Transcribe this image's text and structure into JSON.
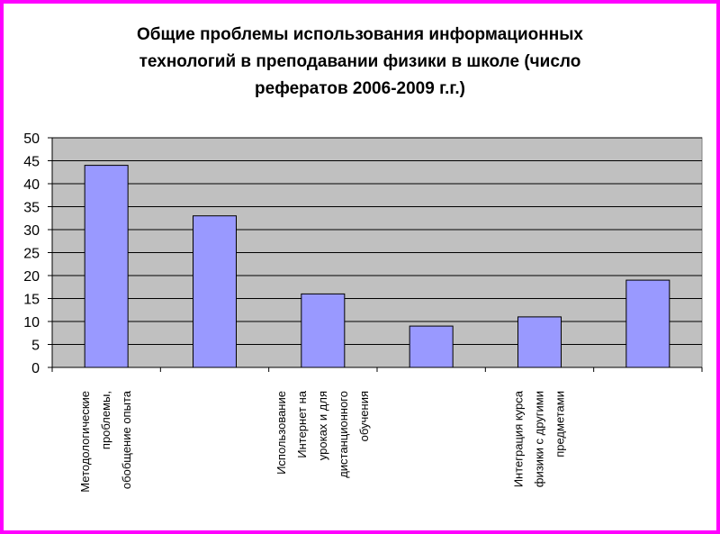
{
  "chart_data": {
    "type": "bar",
    "title": "Общие проблемы использования информационных\nтехнологий в преподавании физики в школе (число\nрефератов 2006-2009 г.г.)",
    "categories": [
      "Методологические проблемы, обобщение опыта",
      "",
      "Использование Интернет на уроках и для дистанционного обучения",
      "",
      "Интеграция курса физики с другими предметами",
      ""
    ],
    "category_lines": [
      [
        "Методологические",
        "проблемы,",
        "обобщение опыта"
      ],
      [],
      [
        "Использование",
        "Интернет на",
        "уроках и для",
        "дистанционного",
        "обучения"
      ],
      [],
      [
        "Интеграция курса",
        "физики с другими",
        "предметами"
      ],
      []
    ],
    "values": [
      44,
      33,
      16,
      9,
      11,
      19
    ],
    "yticks": [
      "0",
      "5",
      "10",
      "15",
      "20",
      "25",
      "30",
      "35",
      "40",
      "45",
      "50"
    ],
    "ylim": [
      0,
      50
    ],
    "grid": true,
    "legend": "none",
    "colors": {
      "bar": "#9999ff",
      "plot_background": "#c0c0c0",
      "frame_border": "#ff00ff"
    }
  }
}
